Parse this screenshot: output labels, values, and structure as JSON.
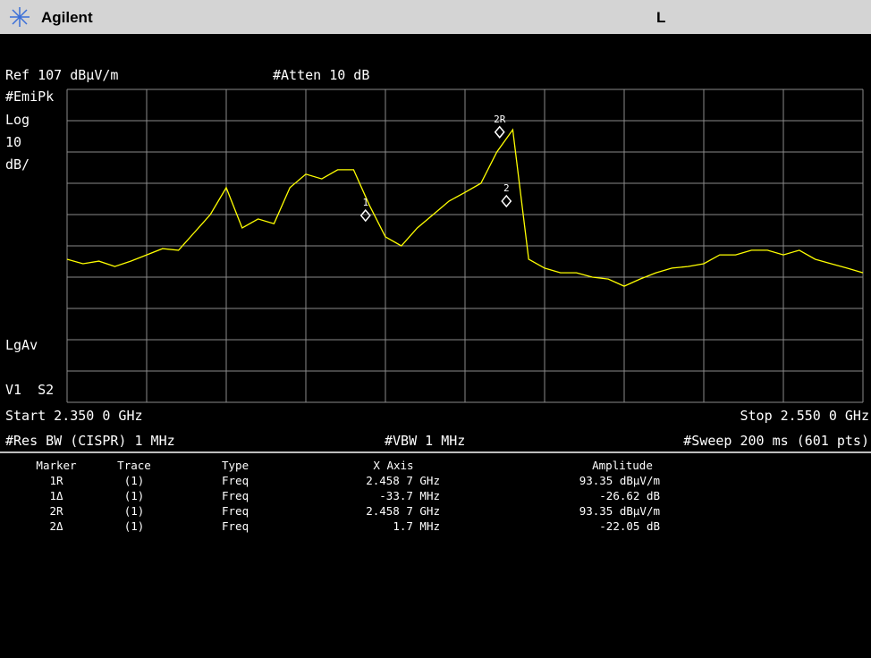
{
  "header": {
    "brand": "Agilent",
    "status": "L"
  },
  "settings": {
    "reference": "Ref 107 dBµV/m",
    "attenuation": "#Atten 10 dB",
    "detector": "#EmiPk",
    "scale_type": "Log",
    "scale_value": "10",
    "scale_unit": "dB/",
    "average": "LgAv",
    "trace_flags": "V1  S2",
    "start": "Start 2.350 0 GHz",
    "stop": "Stop 2.550 0 GHz",
    "res_bw": "#Res BW (CISPR) 1 MHz",
    "vbw": "#VBW 1 MHz",
    "sweep": "#Sweep 200 ms (601 pts)"
  },
  "trace": {
    "color": "#ffff00",
    "xlim": [
      2.35,
      2.55
    ],
    "ylim": [
      7,
      107
    ],
    "x": [
      2.35,
      2.354,
      2.358,
      2.362,
      2.366,
      2.37,
      2.374,
      2.378,
      2.382,
      2.386,
      2.39,
      2.394,
      2.398,
      2.402,
      2.406,
      2.41,
      2.414,
      2.418,
      2.422,
      2.426,
      2.43,
      2.434,
      2.438,
      2.442,
      2.446,
      2.45,
      2.454,
      2.458,
      2.462,
      2.466,
      2.47,
      2.474,
      2.478,
      2.482,
      2.486,
      2.49,
      2.494,
      2.498,
      2.502,
      2.506,
      2.51,
      2.514,
      2.518,
      2.522,
      2.526,
      2.53,
      2.534,
      2.538,
      2.542,
      2.546,
      2.55
    ],
    "values": [
      52.7,
      51.3,
      52.1,
      50.4,
      52.1,
      54.1,
      56.1,
      55.6,
      61.3,
      67,
      75.6,
      62.7,
      65.6,
      64.1,
      75.6,
      79.9,
      78.4,
      81.3,
      81.3,
      69.9,
      59.9,
      57,
      62.7,
      67,
      71.3,
      74.1,
      77,
      87,
      94.1,
      52.7,
      49.9,
      48.4,
      48.4,
      47,
      46.4,
      44.1,
      46.4,
      48.4,
      49.9,
      50.4,
      51.3,
      54.1,
      54.1,
      55.6,
      55.6,
      54.1,
      55.6,
      52.7,
      51.3,
      49.9,
      48.4
    ],
    "markers": [
      {
        "label": "1",
        "x": 2.425,
        "y": 66.7
      },
      {
        "label": "2R",
        "x": 2.4587,
        "y": 93.35
      },
      {
        "label": "2",
        "x": 2.4604,
        "y": 71.3
      }
    ]
  },
  "table": {
    "header": [
      "Marker",
      "Trace",
      "Type",
      "X Axis",
      "Amplitude"
    ],
    "rows": [
      [
        "1R",
        "(1)",
        "Freq",
        "2.458 7 GHz",
        "93.35 dBµV/m"
      ],
      [
        "1Δ",
        "(1)",
        "Freq",
        "-33.7 MHz",
        "-26.62 dB"
      ],
      [
        "2R",
        "(1)",
        "Freq",
        "2.458 7 GHz",
        "93.35 dBµV/m"
      ],
      [
        "2Δ",
        "(1)",
        "Freq",
        "1.7 MHz",
        "-22.05 dB"
      ]
    ]
  }
}
